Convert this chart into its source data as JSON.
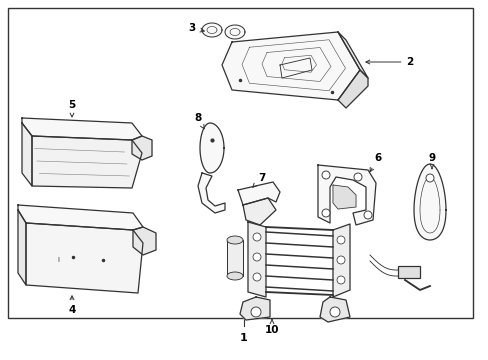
{
  "bg_color": "#ffffff",
  "border_color": "#333333",
  "line_color": "#333333",
  "figure_width": 4.89,
  "figure_height": 3.6,
  "dpi": 100
}
